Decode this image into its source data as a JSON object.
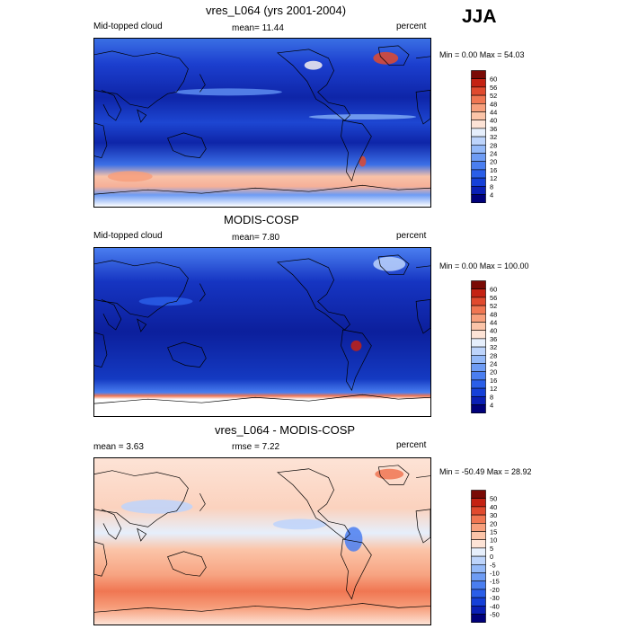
{
  "season": "JJA",
  "panels": [
    {
      "title": "vres_L064 (yrs 2001-2004)",
      "left_label": "Mid-topped cloud",
      "center_label": "mean=  11.44",
      "right_label": "percent",
      "minmax": "Min =   0.00 Max =  54.03"
    },
    {
      "title": "MODIS-COSP",
      "left_label": "Mid-topped cloud",
      "center_label": "mean=   7.80",
      "right_label": "percent",
      "minmax": "Min =   0.00 Max = 100.00"
    },
    {
      "title": "vres_L064 - MODIS-COSP",
      "left_label": "mean =   3.63",
      "center_label": "rmse =   7.22",
      "right_label": "percent",
      "minmax": "Min = -50.49 Max =  28.92"
    }
  ],
  "chart_data": [
    {
      "type": "heatmap",
      "title": "vres_L064 (yrs 2001-2004)",
      "variable": "Mid-topped cloud",
      "units": "percent",
      "mean": 11.44,
      "min": 0.0,
      "max": 54.03,
      "colorbar": {
        "levels": [
          4,
          8,
          12,
          16,
          20,
          24,
          28,
          32,
          36,
          40,
          44,
          48,
          52,
          56,
          60
        ],
        "colors": [
          "#00007a",
          "#0a1fb4",
          "#1540d8",
          "#2a5ee8",
          "#4a7ef0",
          "#6e9cf4",
          "#94b9f8",
          "#bdd4fb",
          "#e6effc",
          "#fde3d6",
          "#fbc4a8",
          "#f79f7c",
          "#f07652",
          "#e04a2e",
          "#c42213",
          "#7a0a05"
        ]
      }
    },
    {
      "type": "heatmap",
      "title": "MODIS-COSP",
      "variable": "Mid-topped cloud",
      "units": "percent",
      "mean": 7.8,
      "min": 0.0,
      "max": 100.0,
      "colorbar": {
        "levels": [
          4,
          8,
          12,
          16,
          20,
          24,
          28,
          32,
          36,
          40,
          44,
          48,
          52,
          56,
          60
        ],
        "colors": [
          "#00007a",
          "#0a1fb4",
          "#1540d8",
          "#2a5ee8",
          "#4a7ef0",
          "#6e9cf4",
          "#94b9f8",
          "#bdd4fb",
          "#e6effc",
          "#fde3d6",
          "#fbc4a8",
          "#f79f7c",
          "#f07652",
          "#e04a2e",
          "#c42213",
          "#7a0a05"
        ]
      }
    },
    {
      "type": "heatmap",
      "title": "vres_L064 - MODIS-COSP",
      "units": "percent",
      "mean": 3.63,
      "rmse": 7.22,
      "min": -50.49,
      "max": 28.92,
      "colorbar": {
        "levels": [
          -50,
          -40,
          -30,
          -20,
          -15,
          -10,
          -5,
          0,
          5,
          10,
          15,
          20,
          30,
          40,
          50
        ],
        "colors": [
          "#00007a",
          "#0a1fb4",
          "#1540d8",
          "#2a5ee8",
          "#4a7ef0",
          "#6e9cf4",
          "#94b9f8",
          "#bdd4fb",
          "#e6effc",
          "#fde3d6",
          "#fbc4a8",
          "#f79f7c",
          "#f07652",
          "#e04a2e",
          "#c42213",
          "#7a0a05"
        ]
      }
    }
  ]
}
